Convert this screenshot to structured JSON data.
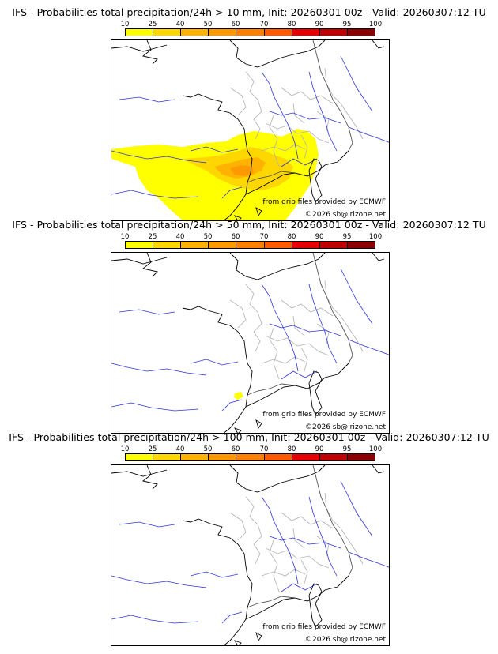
{
  "legend": {
    "ticks": [
      "10",
      "25",
      "40",
      "50",
      "60",
      "70",
      "80",
      "90",
      "95",
      "100"
    ],
    "colors": [
      "#ffff00",
      "#ffd700",
      "#ffb300",
      "#ff9900",
      "#ff7f00",
      "#ff5a00",
      "#e60000",
      "#c00000",
      "#8c0000",
      "#5a0000"
    ]
  },
  "panels": [
    {
      "title": "IFS - Probabilities total precipitation/24h > 10 mm, Init: 20260301 00z - Valid: 20260307:12 TU",
      "source": "from grib files provided by ECMWF",
      "copyright": "©2026 sb@irizone.net",
      "has_field": true
    },
    {
      "title": "IFS - Probabilities total precipitation/24h > 50 mm, Init: 20260301 00z - Valid: 20260307:12 TU",
      "source": "from grib files provided by ECMWF",
      "copyright": "©2026 sb@irizone.net",
      "has_field": "small"
    },
    {
      "title": "IFS - Probabilities total precipitation/24h > 100 mm, Init: 20260301 00z - Valid: 20260307:12 TU",
      "source": "from grib files provided by ECMWF",
      "copyright": "©2026 sb@irizone.net",
      "has_field": false
    }
  ]
}
